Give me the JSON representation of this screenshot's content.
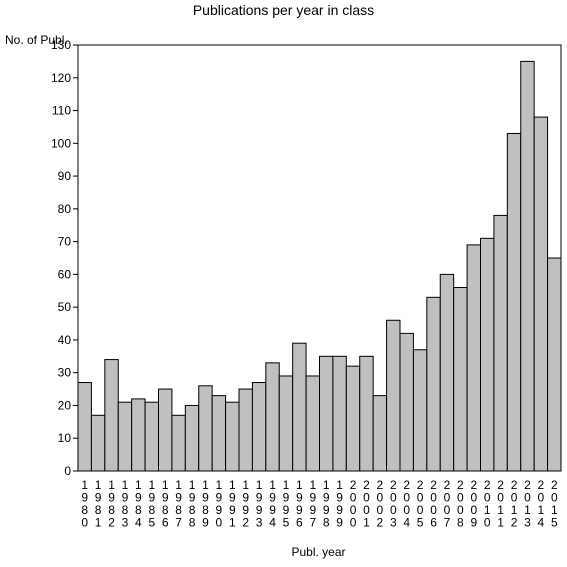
{
  "chart_data": {
    "type": "bar",
    "title": "Publications per year in class",
    "ylabel": "No. of Publ.",
    "xlabel": "Publ. year",
    "ylim": [
      0,
      130
    ],
    "yticks": [
      0,
      10,
      20,
      30,
      40,
      50,
      60,
      70,
      80,
      90,
      100,
      110,
      120,
      130
    ],
    "categories": [
      "1980",
      "1981",
      "1982",
      "1983",
      "1984",
      "1985",
      "1986",
      "1987",
      "1988",
      "1989",
      "1990",
      "1991",
      "1992",
      "1993",
      "1994",
      "1995",
      "1996",
      "1997",
      "1998",
      "1999",
      "2000",
      "2001",
      "2002",
      "2003",
      "2004",
      "2005",
      "2006",
      "2007",
      "2008",
      "2009",
      "2010",
      "2011",
      "2012",
      "2013",
      "2014",
      "2015"
    ],
    "values": [
      27,
      17,
      34,
      21,
      22,
      21,
      25,
      17,
      20,
      26,
      23,
      21,
      25,
      27,
      33,
      29,
      39,
      29,
      35,
      35,
      32,
      35,
      23,
      46,
      42,
      37,
      53,
      60,
      56,
      69,
      71,
      78,
      103,
      125,
      108,
      65
    ],
    "bar_color": "#c0c0c0",
    "grid": false
  }
}
